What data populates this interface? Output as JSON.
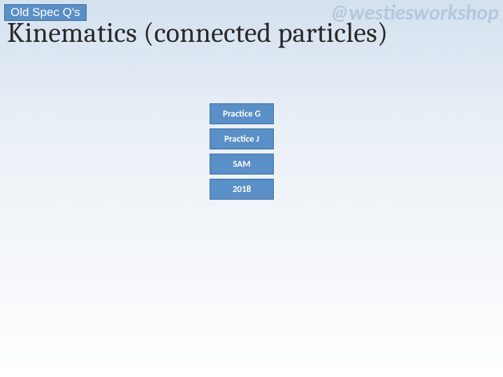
{
  "badge": {
    "label": "Old Spec Q's"
  },
  "handle": "@westiesworkshop",
  "title": "Kinematics (connected particles)",
  "buttons": [
    {
      "label": "Practice G"
    },
    {
      "label": "Practice J"
    },
    {
      "label": "SAM"
    },
    {
      "label": "2018"
    }
  ],
  "colors": {
    "button_bg": "#5a8fc7",
    "button_border": "#3a6fa3",
    "button_text": "#ffffff",
    "handle_text": "#b4c7dd",
    "title_text": "#2a2a2a",
    "bg_top": "#d4e1ef",
    "bg_bottom": "#ffffff"
  }
}
